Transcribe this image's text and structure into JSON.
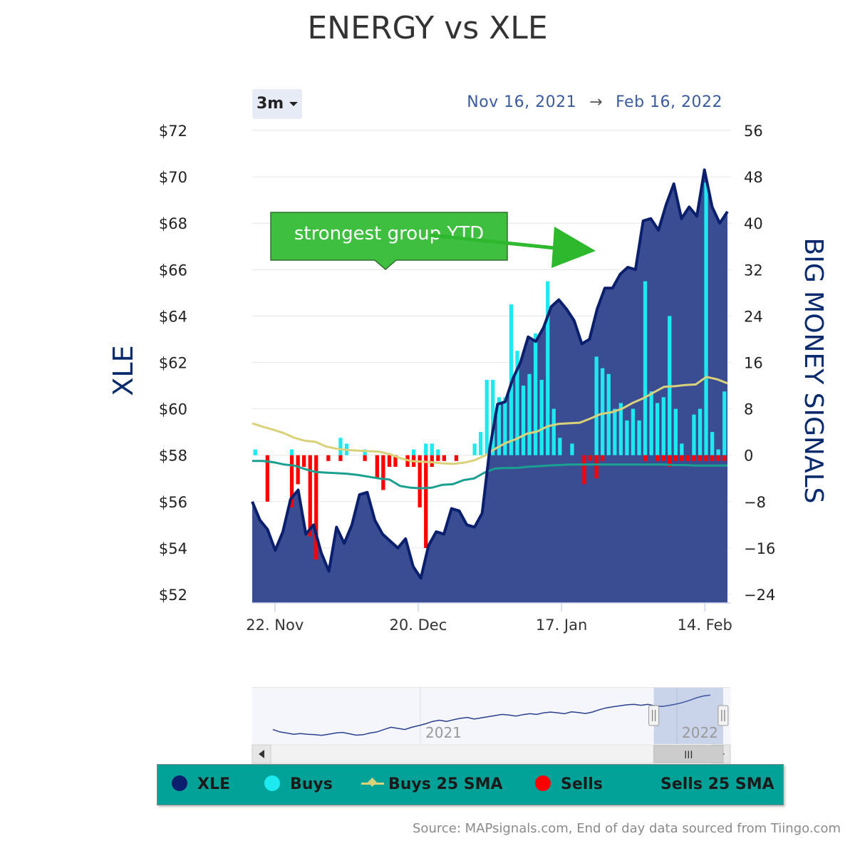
{
  "title": "ENERGY vs XLE",
  "range_selector": {
    "label": "3m"
  },
  "date_range": {
    "from": "Nov 16, 2021",
    "arrow": "→",
    "to": "Feb 16, 2022"
  },
  "annotation": {
    "text": "strongest group YTD"
  },
  "navigator": {
    "labels": [
      "2021",
      "2022"
    ],
    "grip": "III",
    "window_start": 0.84,
    "window_end": 0.985
  },
  "legend": [
    {
      "label": "XLE",
      "color": "#0a1f6e",
      "marker": "dot"
    },
    {
      "label": "Buys",
      "color": "#1de9f0",
      "marker": "dot"
    },
    {
      "label": "Buys 25 SMA",
      "color": "#d9d27a",
      "marker": "line"
    },
    {
      "label": "Sells",
      "color": "#ff0000",
      "marker": "dot"
    },
    {
      "label": "Sells 25 SMA",
      "color": "#1aa090",
      "marker": "none"
    }
  ],
  "source": "Source: MAPsignals.com, End of day data sourced from Tiingo.com",
  "colors": {
    "area_fill": "#3a4d92",
    "xle_line": "#0a1f6e",
    "buys": "#1de9f0",
    "sells": "#ff0000",
    "buys_sma": "#d9d27a",
    "sells_sma": "#1aa090",
    "axis_label": "#0a2a6e"
  },
  "chart_data": {
    "type": "line",
    "y_left": {
      "label": "XLE",
      "ticks": [
        "$72",
        "$70",
        "$68",
        "$66",
        "$64",
        "$62",
        "$60",
        "$58",
        "$56",
        "$54",
        "$52"
      ],
      "range": [
        52,
        72
      ]
    },
    "y_right": {
      "label": "BIG MONEY SIGNALS",
      "ticks": [
        "56",
        "48",
        "40",
        "32",
        "24",
        "16",
        "8",
        "0",
        "−8",
        "−16",
        "−24"
      ],
      "range": [
        -24,
        56
      ]
    },
    "x_ticks": [
      {
        "label": "22. Nov",
        "index": 3
      },
      {
        "label": "20. Dec",
        "index": 22
      },
      {
        "label": "17. Jan",
        "index": 41
      },
      {
        "label": "14. Feb",
        "index": 60
      }
    ],
    "series": [
      {
        "name": "XLE",
        "axis": "left",
        "values": [
          56.0,
          55.2,
          54.8,
          53.9,
          54.7,
          56.1,
          56.5,
          54.6,
          55.0,
          53.8,
          53.0,
          54.9,
          54.2,
          55.0,
          56.3,
          56.4,
          55.2,
          54.6,
          54.3,
          54.0,
          54.4,
          53.2,
          52.7,
          54.1,
          54.7,
          54.6,
          55.7,
          55.6,
          55.0,
          54.9,
          55.5,
          58.3,
          60.2,
          60.3,
          61.3,
          62.0,
          63.1,
          62.9,
          63.5,
          64.4,
          64.7,
          64.3,
          63.8,
          62.8,
          63.0,
          64.3,
          65.2,
          65.2,
          65.8,
          66.1,
          66.0,
          68.1,
          68.2,
          67.7,
          68.8,
          69.7,
          68.2,
          68.7,
          68.3,
          70.3,
          68.7,
          68.0,
          68.5
        ]
      },
      {
        "name": "Buys",
        "axis": "right",
        "type": "bar",
        "values": [
          1,
          0,
          0,
          0,
          0,
          0,
          1,
          0,
          0,
          0,
          0,
          0,
          0,
          0,
          3,
          2,
          0,
          0,
          1,
          0,
          0,
          0,
          0,
          0,
          0,
          0,
          1,
          0,
          2,
          2,
          1,
          0,
          0,
          0,
          0,
          0,
          2,
          4,
          13,
          13,
          10,
          10,
          26,
          18,
          12,
          14,
          21,
          13,
          30,
          8,
          3,
          0,
          2,
          0,
          0,
          0,
          17,
          15,
          14,
          8,
          9,
          6,
          8,
          6,
          30,
          11,
          9,
          10,
          24,
          8,
          2,
          0,
          7,
          8,
          47,
          4,
          1,
          11
        ]
      },
      {
        "name": "Sells",
        "axis": "right",
        "type": "bar",
        "values": [
          0,
          0,
          -8,
          0,
          0,
          0,
          -9,
          -5,
          -2,
          -14,
          -18,
          0,
          -1,
          0,
          -1,
          0,
          0,
          0,
          -1,
          0,
          -4,
          -6,
          -2,
          -2,
          0,
          -2,
          -2,
          -9,
          -16,
          -2,
          -1,
          -1,
          0,
          -1,
          0,
          0,
          0,
          0,
          0,
          0,
          0,
          0,
          0,
          0,
          0,
          0,
          0,
          0,
          0,
          0,
          0,
          0,
          0,
          0,
          -5,
          -1,
          -4,
          -1,
          0,
          0,
          0,
          0,
          0,
          0,
          -1,
          0,
          -1,
          -1,
          -2,
          -1,
          -1,
          -1,
          -1,
          -1,
          -1,
          -1,
          -1,
          -1
        ]
      },
      {
        "name": "Buys 25 SMA",
        "axis": "right",
        "values": [
          5.5,
          4.9,
          4.4,
          3.8,
          3.0,
          2.5,
          2.3,
          1.5,
          1.1,
          0.9,
          0.8,
          0.7,
          0.6,
          0.2,
          -0.5,
          -1.0,
          -1.1,
          -1.2,
          -1.4,
          -1.5,
          -1.3,
          -0.9,
          -0.1,
          1.1,
          2.1,
          2.8,
          3.7,
          4.1,
          5.0,
          5.4,
          5.5,
          5.6,
          6.3,
          7.1,
          7.4,
          8.0,
          9.0,
          9.8,
          10.8,
          11.8,
          11.9,
          12.1,
          12.2,
          13.5,
          13.1,
          12.4
        ]
      },
      {
        "name": "Sells 25 SMA",
        "axis": "right",
        "values": [
          -1.0,
          -1.0,
          -1.2,
          -1.6,
          -1.8,
          -2.4,
          -2.9,
          -3.0,
          -3.1,
          -3.2,
          -3.4,
          -3.7,
          -4.0,
          -4.2,
          -5.3,
          -5.6,
          -5.7,
          -5.6,
          -5.1,
          -5.0,
          -4.3,
          -4.0,
          -3.0,
          -2.3,
          -2.2,
          -2.2,
          -2.0,
          -1.9,
          -1.8,
          -1.7,
          -1.6,
          -1.6,
          -1.6,
          -1.6,
          -1.6,
          -1.6,
          -1.6,
          -1.6,
          -1.6,
          -1.6,
          -1.7,
          -1.7,
          -1.8,
          -1.8,
          -1.8,
          -1.8
        ]
      }
    ],
    "navigator_series": [
      57,
      56,
      55.5,
      55,
      55.3,
      55,
      54.8,
      54.5,
      55,
      55.5,
      55.8,
      55.2,
      54.6,
      54.8,
      55.5,
      56,
      57,
      58,
      57.5,
      57,
      58,
      58.7,
      59.5,
      60.5,
      61,
      60.5,
      61.2,
      61.8,
      62.2,
      61.5,
      62,
      62.5,
      63,
      63.5,
      63.2,
      62.8,
      63.4,
      63.8,
      63.5,
      64.2,
      64.5,
      64.2,
      63.8,
      64.6,
      64.3,
      63.9,
      64.5,
      65.5,
      66.3,
      66.8,
      67.2,
      67.6,
      67.8,
      67.4,
      67.8,
      67.2,
      66.9,
      67.3,
      67.9,
      68.6,
      69.5,
      70.6,
      71.4,
      71.8
    ]
  }
}
